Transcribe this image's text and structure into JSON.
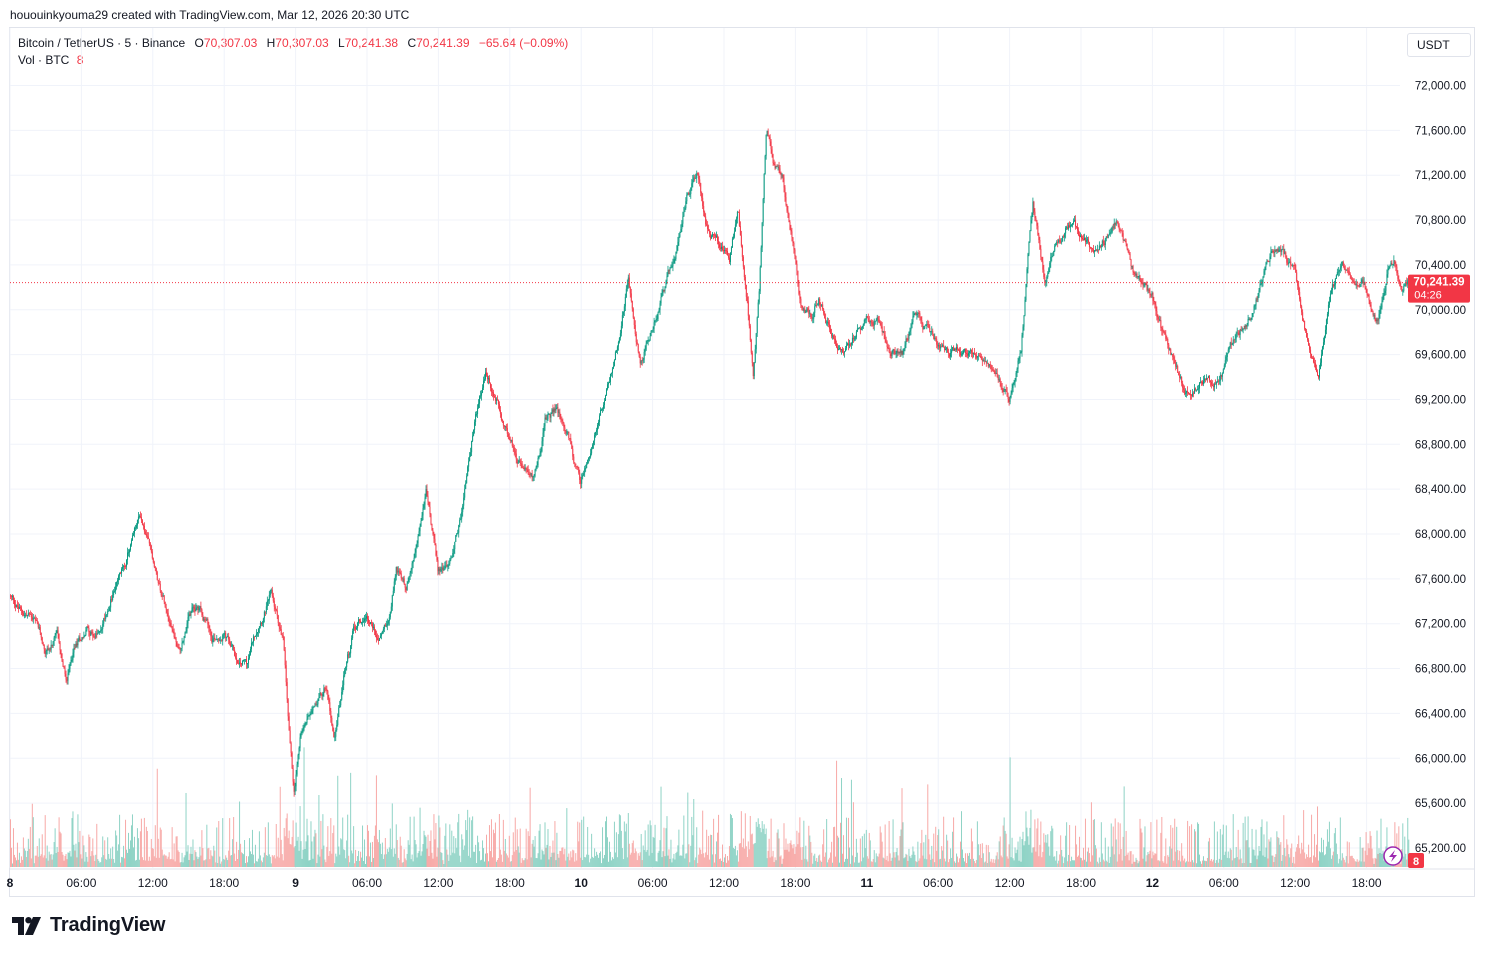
{
  "credit": "hououinkyouma29 created with TradingView.com, Mar 12, 2026 20:30 UTC",
  "legend": {
    "symbol": "Bitcoin / TetherUS · 5 · Binance",
    "o_label": "O",
    "o_value": "70,307.03",
    "h_label": "H",
    "h_value": "70,307.03",
    "l_label": "L",
    "l_value": "70,241.38",
    "c_label": "C",
    "c_value": "70,241.39",
    "change": "−65.64 (−0.09%)",
    "vol_label": "Vol · BTC",
    "vol_value": "8"
  },
  "unit_label": "USDT",
  "brand": "TradingView",
  "colors": {
    "up": "#089981",
    "down": "#f23645",
    "grid": "#f0f3fa",
    "axis_text": "#131722",
    "vol_up": "#8fd3c6",
    "vol_down": "#f7a9a7"
  },
  "chart_data": {
    "type": "candlestick",
    "y_ticks": [
      "72,000.00",
      "71,600.00",
      "71,200.00",
      "70,800.00",
      "70,400.00",
      "70,000.00",
      "69,600.00",
      "69,200.00",
      "68,800.00",
      "68,400.00",
      "68,000.00",
      "67,600.00",
      "67,200.00",
      "66,800.00",
      "66,400.00",
      "66,000.00",
      "65,600.00",
      "65,200.00"
    ],
    "ylim": [
      65100,
      72150
    ],
    "x_ticks": [
      {
        "label": "8",
        "day": true
      },
      {
        "label": "06:00"
      },
      {
        "label": "12:00"
      },
      {
        "label": "18:00"
      },
      {
        "label": "9",
        "day": true
      },
      {
        "label": "06:00"
      },
      {
        "label": "12:00"
      },
      {
        "label": "18:00"
      },
      {
        "label": "10",
        "day": true
      },
      {
        "label": "06:00"
      },
      {
        "label": "12:00"
      },
      {
        "label": "18:00"
      },
      {
        "label": "11",
        "day": true
      },
      {
        "label": "06:00"
      },
      {
        "label": "12:00"
      },
      {
        "label": "18:00"
      },
      {
        "label": "12",
        "day": true
      },
      {
        "label": "06:00"
      },
      {
        "label": "12:00"
      },
      {
        "label": "18:00"
      }
    ],
    "xlim_hours": [
      0,
      117.5
    ],
    "last_price": {
      "value": 70241.39,
      "label": "70,241.39",
      "countdown": "04:26"
    },
    "last_volume": {
      "label": "8"
    },
    "price_path": [
      [
        0,
        67450
      ],
      [
        1,
        67300
      ],
      [
        2,
        67250
      ],
      [
        3,
        66950
      ],
      [
        4,
        67050
      ],
      [
        4.8,
        66650
      ],
      [
        5.5,
        66950
      ],
      [
        6.5,
        67150
      ],
      [
        7.5,
        67100
      ],
      [
        8.5,
        67450
      ],
      [
        9.5,
        67650
      ],
      [
        10.3,
        67950
      ],
      [
        11,
        68150
      ],
      [
        11.8,
        67850
      ],
      [
        12.5,
        67550
      ],
      [
        13.5,
        67300
      ],
      [
        14.3,
        66950
      ],
      [
        15,
        67250
      ],
      [
        16,
        67350
      ],
      [
        17,
        67100
      ],
      [
        18,
        67150
      ],
      [
        19,
        66900
      ],
      [
        20,
        66850
      ],
      [
        21,
        67250
      ],
      [
        22,
        67450
      ],
      [
        23,
        67050
      ],
      [
        23.5,
        66250
      ],
      [
        23.9,
        65750
      ],
      [
        24.5,
        66250
      ],
      [
        25.5,
        66550
      ],
      [
        26.5,
        66650
      ],
      [
        27.3,
        66250
      ],
      [
        28.2,
        66800
      ],
      [
        29,
        67150
      ],
      [
        30,
        67300
      ],
      [
        31,
        67100
      ],
      [
        31.8,
        67250
      ],
      [
        32.5,
        67750
      ],
      [
        33.3,
        67550
      ],
      [
        34.2,
        67850
      ],
      [
        35,
        68400
      ],
      [
        36,
        67650
      ],
      [
        37,
        67750
      ],
      [
        38,
        68200
      ],
      [
        39,
        68950
      ],
      [
        40,
        69400
      ],
      [
        41,
        69150
      ],
      [
        42,
        68850
      ],
      [
        43,
        68600
      ],
      [
        44,
        68450
      ],
      [
        45,
        69000
      ],
      [
        46,
        69100
      ],
      [
        47,
        68850
      ],
      [
        48,
        68450
      ],
      [
        49,
        68800
      ],
      [
        50,
        69150
      ],
      [
        51,
        69650
      ],
      [
        52,
        70300
      ],
      [
        53,
        69550
      ],
      [
        54,
        69850
      ],
      [
        55,
        70150
      ],
      [
        56,
        70500
      ],
      [
        57,
        70950
      ],
      [
        57.8,
        71200
      ],
      [
        58.5,
        70750
      ],
      [
        59.5,
        70600
      ],
      [
        60.5,
        70450
      ],
      [
        61.2,
        70850
      ],
      [
        62,
        70100
      ],
      [
        62.5,
        69450
      ],
      [
        63,
        70200
      ],
      [
        63.6,
        71600
      ],
      [
        64.2,
        71300
      ],
      [
        65,
        71150
      ],
      [
        65.8,
        70650
      ],
      [
        66.5,
        70000
      ],
      [
        67.3,
        69950
      ],
      [
        68,
        70100
      ],
      [
        69,
        69800
      ],
      [
        70,
        69600
      ],
      [
        71,
        69800
      ],
      [
        72,
        69950
      ],
      [
        73,
        69950
      ],
      [
        74,
        69700
      ],
      [
        75,
        69650
      ],
      [
        76,
        69950
      ],
      [
        77,
        69800
      ],
      [
        78,
        69650
      ],
      [
        79,
        69550
      ],
      [
        80,
        69600
      ],
      [
        81,
        69550
      ],
      [
        82,
        69550
      ],
      [
        83,
        69400
      ],
      [
        84,
        69250
      ],
      [
        85,
        69700
      ],
      [
        86,
        70950
      ],
      [
        87,
        70300
      ],
      [
        88,
        70600
      ],
      [
        89,
        70750
      ],
      [
        90,
        70650
      ],
      [
        91,
        70550
      ],
      [
        92,
        70650
      ],
      [
        93,
        70800
      ],
      [
        94,
        70450
      ],
      [
        95,
        70200
      ],
      [
        96,
        70100
      ],
      [
        97,
        69750
      ],
      [
        98,
        69450
      ],
      [
        99,
        69250
      ],
      [
        100,
        69400
      ],
      [
        101,
        69350
      ],
      [
        102,
        69450
      ],
      [
        103,
        69750
      ],
      [
        104,
        69900
      ],
      [
        105,
        70150
      ],
      [
        106,
        70450
      ],
      [
        107,
        70500
      ],
      [
        108,
        70350
      ],
      [
        109,
        69800
      ],
      [
        110,
        69450
      ],
      [
        111,
        70150
      ],
      [
        112,
        70400
      ],
      [
        113,
        70350
      ],
      [
        114,
        70200
      ],
      [
        115,
        69900
      ],
      [
        115.8,
        70350
      ],
      [
        116.3,
        70450
      ],
      [
        117,
        70241
      ]
    ]
  }
}
